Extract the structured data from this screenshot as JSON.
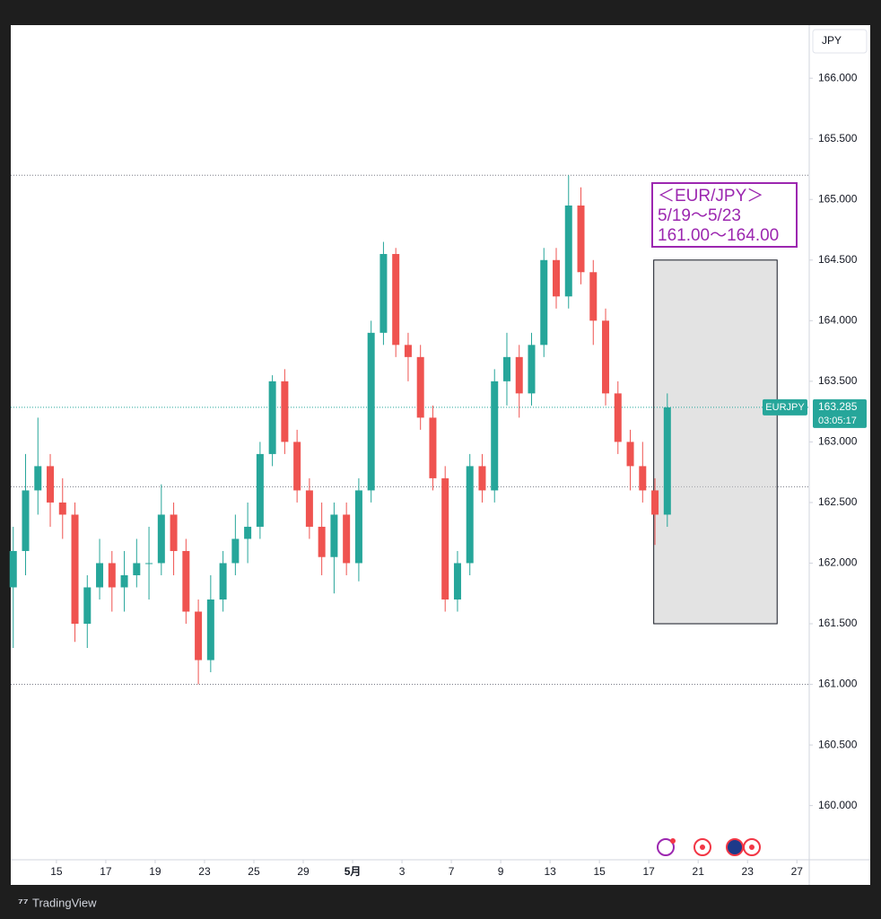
{
  "chart_data": {
    "type": "candlestick",
    "symbol": "EURJPY",
    "currency": "JPY",
    "countdown": "03:05:17",
    "brand": "TradingView",
    "up_color": "#26a69a",
    "down_color": "#ef5350",
    "annotation": [
      "＜EUR/JPY＞",
      "5/19～5/23",
      "161.00～164.00"
    ],
    "annotation_color": "#9c27b0",
    "box": {
      "xlim": [
        24.2,
        29.2
      ],
      "ylim": [
        161.5,
        164.5
      ]
    },
    "hlines": [
      165.2,
      162.63,
      161.0
    ],
    "xlim": [
      -1.85,
      30.5
    ],
    "xticks": [
      {
        "value": 0,
        "label": "15"
      },
      {
        "value": 2,
        "label": "17"
      },
      {
        "value": 4,
        "label": "19"
      },
      {
        "value": 6,
        "label": "23"
      },
      {
        "value": 8,
        "label": "25"
      },
      {
        "value": 10,
        "label": "29"
      },
      {
        "value": 12,
        "label": "5月"
      },
      {
        "value": 14,
        "label": "3"
      },
      {
        "value": 16,
        "label": "7"
      },
      {
        "value": 18,
        "label": "9"
      },
      {
        "value": 20,
        "label": "13"
      },
      {
        "value": 22,
        "label": "15"
      },
      {
        "value": 24,
        "label": "17"
      },
      {
        "value": 26,
        "label": "21"
      },
      {
        "value": 28,
        "label": "23"
      },
      {
        "value": 30,
        "label": "27"
      }
    ],
    "ylim": [
      159.553,
      166.438
    ],
    "yticks": [
      {
        "value": 160,
        "label": "160.000"
      },
      {
        "value": 160.5,
        "label": "160.500"
      },
      {
        "value": 161,
        "label": "161.000"
      },
      {
        "value": 161.5,
        "label": "161.500"
      },
      {
        "value": 162,
        "label": "162.000"
      },
      {
        "value": 162.5,
        "label": "162.500"
      },
      {
        "value": 163,
        "label": "163.000"
      },
      {
        "value": 163.5,
        "label": "163.500"
      },
      {
        "value": 164,
        "label": "164.000"
      },
      {
        "value": 164.5,
        "label": "164.500"
      },
      {
        "value": 165,
        "label": "165.000"
      },
      {
        "value": 165.5,
        "label": "165.500"
      },
      {
        "value": 166,
        "label": "166.000"
      }
    ],
    "x": [
      -1.75,
      -1.25,
      -0.75,
      -0.25,
      0.25,
      0.75,
      1.25,
      1.75,
      2.25,
      2.75,
      3.25,
      3.75,
      4.25,
      4.75,
      5.25,
      5.75,
      6.25,
      6.75,
      7.25,
      7.75,
      8.25,
      8.75,
      9.25,
      9.75,
      10.25,
      10.75,
      11.25,
      11.75,
      12.25,
      12.75,
      13.25,
      13.75,
      14.25,
      14.75,
      15.25,
      15.75,
      16.25,
      16.75,
      17.25,
      17.75,
      18.25,
      18.75,
      19.25,
      19.75,
      20.25,
      20.75,
      21.25,
      21.75,
      22.25,
      22.75,
      23.25,
      23.75,
      24.25,
      24.75
    ],
    "ohlc": [
      [
        161.8,
        162.3,
        161.3,
        162.1
      ],
      [
        162.1,
        162.9,
        161.9,
        162.6
      ],
      [
        162.6,
        163.2,
        162.4,
        162.8
      ],
      [
        162.8,
        162.9,
        162.3,
        162.5
      ],
      [
        162.5,
        162.7,
        162.2,
        162.4
      ],
      [
        162.4,
        162.5,
        161.35,
        161.5
      ],
      [
        161.5,
        161.9,
        161.3,
        161.8
      ],
      [
        161.8,
        162.2,
        161.7,
        162.0
      ],
      [
        162.0,
        162.1,
        161.6,
        161.8
      ],
      [
        161.8,
        162.1,
        161.6,
        161.9
      ],
      [
        161.9,
        162.2,
        161.8,
        162.0
      ],
      [
        162.0,
        162.3,
        161.7,
        162.0
      ],
      [
        162.0,
        162.65,
        161.9,
        162.4
      ],
      [
        162.4,
        162.5,
        161.9,
        162.1
      ],
      [
        162.1,
        162.2,
        161.5,
        161.6
      ],
      [
        161.6,
        161.7,
        161.0,
        161.2
      ],
      [
        161.2,
        161.9,
        161.1,
        161.7
      ],
      [
        161.7,
        162.1,
        161.6,
        162.0
      ],
      [
        162.0,
        162.4,
        161.9,
        162.2
      ],
      [
        162.2,
        162.5,
        162.0,
        162.3
      ],
      [
        162.3,
        163.0,
        162.2,
        162.9
      ],
      [
        162.9,
        163.55,
        162.8,
        163.5
      ],
      [
        163.5,
        163.6,
        162.9,
        163.0
      ],
      [
        163.0,
        163.1,
        162.5,
        162.6
      ],
      [
        162.6,
        162.7,
        162.2,
        162.3
      ],
      [
        162.3,
        162.5,
        161.9,
        162.05
      ],
      [
        162.05,
        162.5,
        161.75,
        162.4
      ],
      [
        162.4,
        162.5,
        161.9,
        162.0
      ],
      [
        162.0,
        162.7,
        161.85,
        162.6
      ],
      [
        162.6,
        164.0,
        162.5,
        163.9
      ],
      [
        163.9,
        164.65,
        163.8,
        164.55
      ],
      [
        164.55,
        164.6,
        163.7,
        163.8
      ],
      [
        163.8,
        163.9,
        163.5,
        163.7
      ],
      [
        163.7,
        163.8,
        163.1,
        163.2
      ],
      [
        163.2,
        163.3,
        162.6,
        162.7
      ],
      [
        162.7,
        162.8,
        161.6,
        161.7
      ],
      [
        161.7,
        162.1,
        161.6,
        162.0
      ],
      [
        162.0,
        162.9,
        161.9,
        162.8
      ],
      [
        162.8,
        162.9,
        162.5,
        162.6
      ],
      [
        162.6,
        163.6,
        162.5,
        163.5
      ],
      [
        163.5,
        163.9,
        163.3,
        163.7
      ],
      [
        163.7,
        163.8,
        163.2,
        163.4
      ],
      [
        163.4,
        163.9,
        163.3,
        163.8
      ],
      [
        163.8,
        164.6,
        163.7,
        164.5
      ],
      [
        164.5,
        164.6,
        164.1,
        164.2
      ],
      [
        164.2,
        165.2,
        164.1,
        164.95
      ],
      [
        164.95,
        165.1,
        164.3,
        164.4
      ],
      [
        164.4,
        164.5,
        163.8,
        164.0
      ],
      [
        164.0,
        164.1,
        163.3,
        163.4
      ],
      [
        163.4,
        163.5,
        162.9,
        163.0
      ],
      [
        163.0,
        163.1,
        162.6,
        162.8
      ],
      [
        162.8,
        163.0,
        162.5,
        162.6
      ],
      [
        162.6,
        162.7,
        162.15,
        162.4
      ],
      [
        162.4,
        163.4,
        162.3,
        163.285
      ]
    ]
  }
}
